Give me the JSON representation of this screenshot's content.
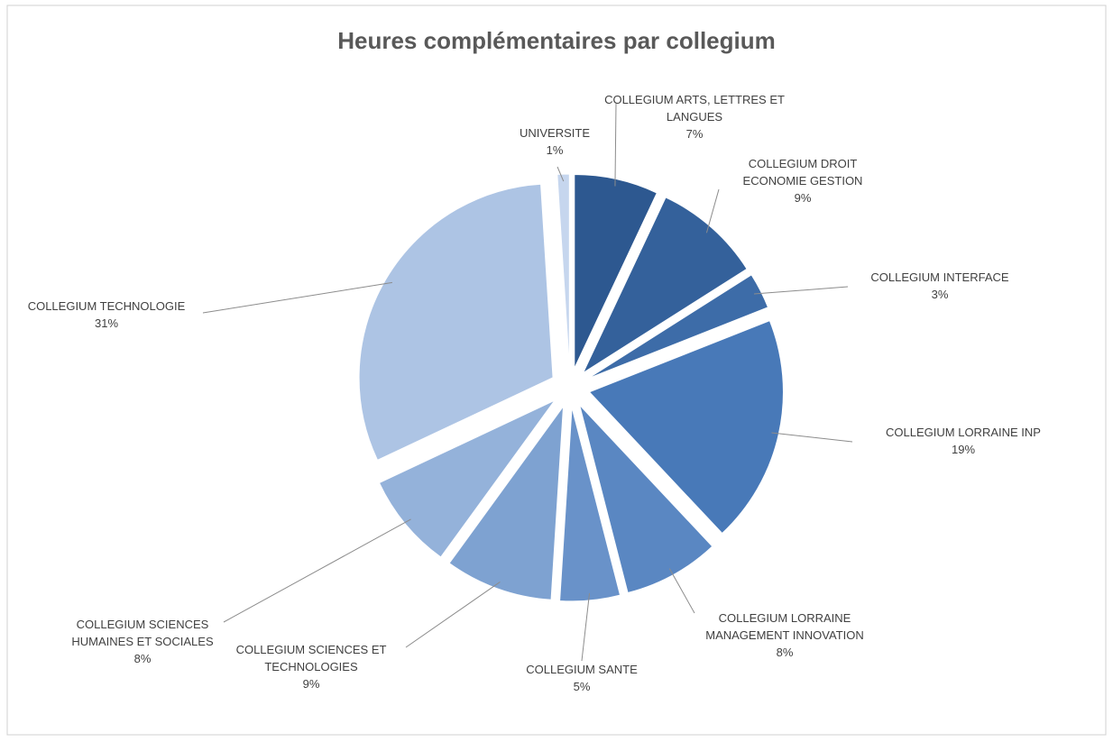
{
  "chart_data": {
    "type": "pie",
    "title": "Heures complémentaires par collegium",
    "categories": [
      "COLLEGIUM ARTS, LETTRES ET LANGUES",
      "COLLEGIUM DROIT ECONOMIE GESTION",
      "COLLEGIUM INTERFACE",
      "COLLEGIUM LORRAINE INP",
      "COLLEGIUM LORRAINE MANAGEMENT INNOVATION",
      "COLLEGIUM SANTE",
      "COLLEGIUM SCIENCES ET TECHNOLOGIES",
      "COLLEGIUM SCIENCES HUMAINES ET SOCIALES",
      "COLLEGIUM TECHNOLOGIE",
      "UNIVERSITE"
    ],
    "values": [
      7,
      9,
      3,
      19,
      8,
      5,
      9,
      8,
      31,
      1
    ],
    "value_labels": [
      "7%",
      "9%",
      "3%",
      "19%",
      "8%",
      "5%",
      "9%",
      "8%",
      "31%",
      "1%"
    ],
    "colors": [
      "#2d5890",
      "#34619b",
      "#3d6ca8",
      "#4879b8",
      "#5a87c2",
      "#6992c9",
      "#7ea2d1",
      "#94b2da",
      "#adc4e4",
      "#c6d6ee"
    ]
  }
}
